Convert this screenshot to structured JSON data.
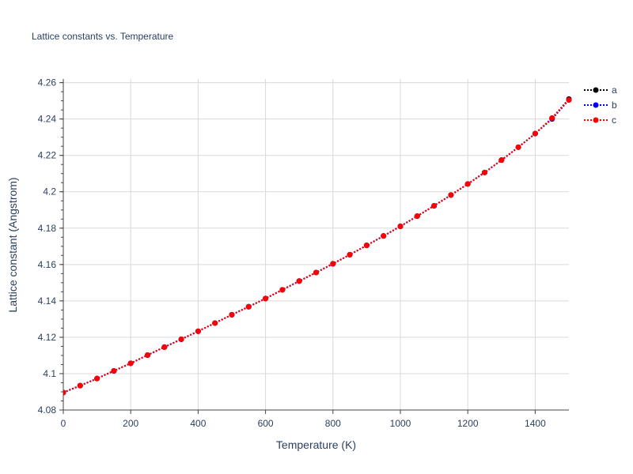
{
  "chart_data": {
    "type": "line",
    "title": "Lattice constants vs. Temperature",
    "xlabel": "Temperature (K)",
    "ylabel": "Lattice constant (Angstrom)",
    "xlim": [
      0,
      1500
    ],
    "ylim": [
      4.08,
      4.262
    ],
    "x_ticks": [
      0,
      200,
      400,
      600,
      800,
      1000,
      1200,
      1400
    ],
    "x_tick_labels": [
      "0",
      "200",
      "400",
      "600",
      "800",
      "1000",
      "1200",
      "1400"
    ],
    "y_ticks": [
      4.08,
      4.1,
      4.12,
      4.14,
      4.16,
      4.18,
      4.2,
      4.22,
      4.24,
      4.26
    ],
    "y_tick_labels": [
      "4.08",
      "4.1",
      "4.12",
      "4.14",
      "4.16",
      "4.18",
      "4.2",
      "4.22",
      "4.24",
      "4.26"
    ],
    "grid": true,
    "legend_position": "top-right",
    "x": [
      0,
      50,
      100,
      150,
      200,
      250,
      300,
      350,
      400,
      450,
      500,
      550,
      600,
      650,
      700,
      750,
      800,
      850,
      900,
      950,
      1000,
      1050,
      1100,
      1150,
      1200,
      1250,
      1300,
      1350,
      1400,
      1450,
      1500
    ],
    "series": [
      {
        "name": "a",
        "color": "#000000",
        "values": [
          4.0896,
          4.0934,
          4.0973,
          4.1015,
          4.1057,
          4.1102,
          4.1146,
          4.1189,
          4.1233,
          4.1278,
          4.1324,
          4.1368,
          4.1413,
          4.1461,
          4.1509,
          4.1556,
          4.1604,
          4.1654,
          4.1705,
          4.1757,
          4.181,
          4.1866,
          4.1923,
          4.1982,
          4.2043,
          4.2106,
          4.2174,
          4.2245,
          4.232,
          4.2405,
          4.251
        ]
      },
      {
        "name": "b",
        "color": "#0000ff",
        "values": [
          4.0896,
          4.0934,
          4.0973,
          4.1015,
          4.1057,
          4.1102,
          4.1146,
          4.1189,
          4.1233,
          4.1278,
          4.1324,
          4.1368,
          4.1413,
          4.1461,
          4.1509,
          4.1556,
          4.1604,
          4.1654,
          4.1705,
          4.1757,
          4.181,
          4.1866,
          4.1923,
          4.1982,
          4.2043,
          4.2106,
          4.2174,
          4.2245,
          4.232,
          4.24,
          4.2505
        ]
      },
      {
        "name": "c",
        "color": "#ff0000",
        "values": [
          4.0896,
          4.0934,
          4.0973,
          4.1015,
          4.1057,
          4.1102,
          4.1146,
          4.1189,
          4.1233,
          4.1278,
          4.1324,
          4.1368,
          4.1413,
          4.1461,
          4.1509,
          4.1556,
          4.1604,
          4.1654,
          4.1705,
          4.1757,
          4.181,
          4.1866,
          4.1923,
          4.1982,
          4.2043,
          4.2106,
          4.2174,
          4.2245,
          4.232,
          4.2405,
          4.2505
        ]
      }
    ]
  }
}
